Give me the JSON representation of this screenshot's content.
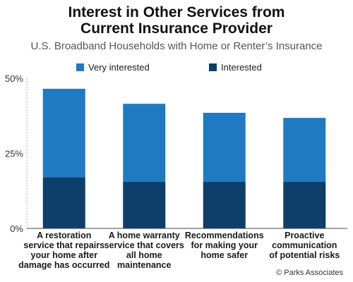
{
  "colors": {
    "very_interested": "#1f7ac2",
    "interested": "#0d3f6a",
    "axis": "#444444",
    "grid": "#9a9a9a"
  },
  "chart_data": {
    "type": "bar",
    "stacked": true,
    "title_line1": "Interest in Other Services from",
    "title_line2": "Current Insurance Provider",
    "subtitle": "U.S. Broadband Households with Home or Renter’s Insurance",
    "categories": [
      [
        "A restoration",
        "service that repairs",
        "your home after",
        "damage has occurred"
      ],
      [
        "A home warranty",
        "service that covers",
        "all home",
        "maintenance"
      ],
      [
        "Recommendations",
        "for making your",
        "home safer"
      ],
      [
        "Proactive",
        "communication",
        "of potential risks"
      ]
    ],
    "series": [
      {
        "name": "Interested",
        "values": [
          17,
          15.5,
          15.5,
          15.5
        ]
      },
      {
        "name": "Very interested",
        "values": [
          29.5,
          26,
          23,
          21.3
        ]
      }
    ],
    "yticks": [
      "50%",
      "25%",
      "0%"
    ],
    "ytick_values": [
      50,
      25,
      0
    ],
    "ylim": [
      0,
      50
    ],
    "legend_position": "top"
  },
  "legend": {
    "very_interested": "Very interested",
    "interested": "Interested"
  },
  "source": "© Parks Associates"
}
